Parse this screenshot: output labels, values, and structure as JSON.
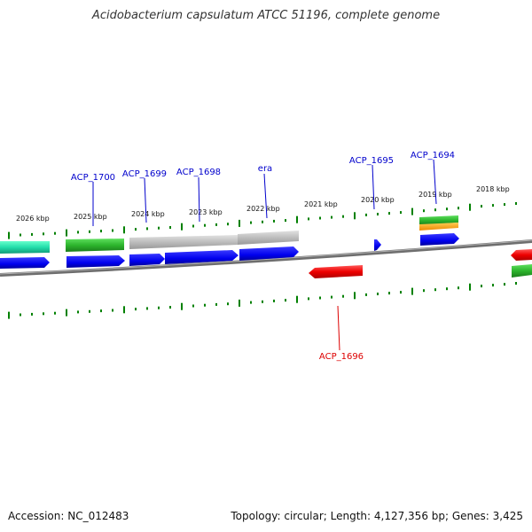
{
  "title": "Acidobacterium capsulatum ATCC 51196, complete genome",
  "footer": {
    "accession": "Accession: NC_012483",
    "stats": "Topology: circular; Length: 4,127,356 bp; Genes: 3,425"
  },
  "colors": {
    "cds_blue": "#0000ee",
    "green_gene": "#2db52d",
    "teal_gene": "#22ddaa",
    "gray_gene": "#bbbbbb",
    "red_gene": "#ee0000",
    "orange_gene": "#ff9900",
    "backbone": "#808080",
    "ticks": "#008000",
    "label_blue": "#0000cc",
    "label_red": "#dd0000"
  },
  "kbp_labels": [
    "2026 kbp",
    "2025 kbp",
    "2024 kbp",
    "2023 kbp",
    "2022 kbp",
    "2021 kbp",
    "2020 kbp",
    "2019 kbp",
    "2018 kbp"
  ],
  "gene_labels": [
    {
      "text": "ACP_1700",
      "color": "blue"
    },
    {
      "text": "ACP_1699",
      "color": "blue"
    },
    {
      "text": "ACP_1698",
      "color": "blue"
    },
    {
      "text": "era",
      "color": "blue"
    },
    {
      "text": "ACP_1695",
      "color": "blue"
    },
    {
      "text": "ACP_1694",
      "color": "blue"
    },
    {
      "text": "ACP_1696",
      "color": "red"
    }
  ]
}
